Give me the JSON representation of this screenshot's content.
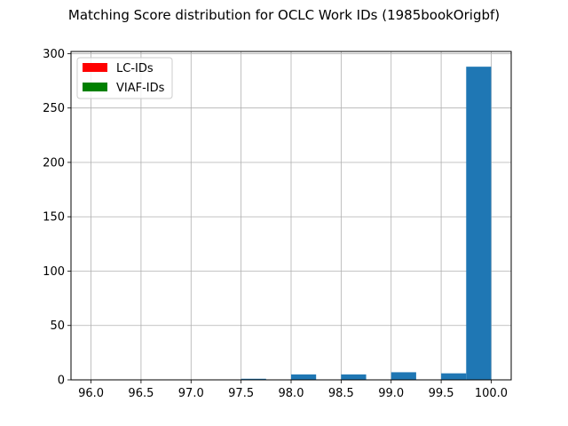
{
  "chart_data": {
    "type": "bar",
    "title": "Matching Score distribution for OCLC Work IDs (1985bookOrigbf)",
    "xlabel": "",
    "ylabel": "",
    "xlim": [
      95.8,
      100.2
    ],
    "ylim": [
      0,
      302
    ],
    "grid": true,
    "legend_position": "top-left",
    "xticks": [
      "96.0",
      "96.5",
      "97.0",
      "97.5",
      "98.0",
      "98.5",
      "99.0",
      "99.5",
      "100.0"
    ],
    "yticks": [
      "0",
      "50",
      "100",
      "150",
      "200",
      "250",
      "300"
    ],
    "legend": [
      {
        "name": "LC-IDs",
        "color": "#ff0000"
      },
      {
        "name": "VIAF-IDs",
        "color": "#008000"
      }
    ],
    "bar_color": "#1f77b4",
    "bins": [
      {
        "start": 97.5,
        "end": 97.75,
        "value": 1
      },
      {
        "start": 98.0,
        "end": 98.25,
        "value": 5
      },
      {
        "start": 98.5,
        "end": 98.75,
        "value": 5
      },
      {
        "start": 99.0,
        "end": 99.25,
        "value": 7
      },
      {
        "start": 99.5,
        "end": 99.75,
        "value": 6
      },
      {
        "start": 99.75,
        "end": 100.0,
        "value": 288
      }
    ]
  }
}
